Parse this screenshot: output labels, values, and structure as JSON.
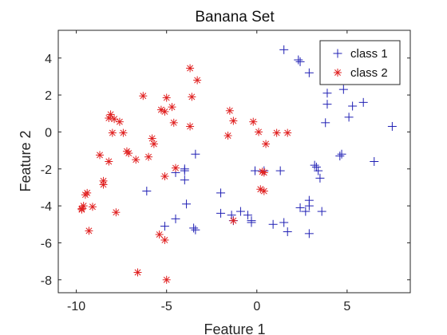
{
  "chart_data": {
    "type": "scatter",
    "title": "Banana Set",
    "xlabel": "Feature 1",
    "ylabel": "Feature 2",
    "xlim": [
      -11,
      8.5
    ],
    "ylim": [
      -8.7,
      5.5
    ],
    "xticks": [
      -10,
      -5,
      0,
      5
    ],
    "yticks": [
      -8,
      -6,
      -4,
      -2,
      0,
      2,
      4
    ],
    "grid": false,
    "legend_position": "top-right",
    "series": [
      {
        "name": "class 1",
        "marker": "plus",
        "color": "#1f1fb4",
        "x": [
          1.5,
          2.3,
          2.4,
          2.9,
          4.8,
          3.9,
          3.9,
          3.8,
          5.3,
          5.9,
          5.1,
          7.5,
          4.7,
          4.6,
          6.5,
          3.2,
          3.3,
          3.5,
          1.3,
          0.4,
          -3.4,
          -4.0,
          -4.0,
          -4.0,
          -4.5,
          -6.1,
          -2.0,
          -3.9,
          -4.5,
          -5.1,
          -3.5,
          -3.4,
          -2.0,
          -1.4,
          -1.3,
          -0.9,
          -0.5,
          -0.3,
          -0.3,
          0.9,
          1.5,
          1.7,
          2.4,
          2.7,
          2.9,
          2.9,
          3.6,
          3.4,
          2.9,
          -0.1
        ],
        "y": [
          4.45,
          3.9,
          3.8,
          3.2,
          2.3,
          2.1,
          1.5,
          0.5,
          1.4,
          1.6,
          0.8,
          0.3,
          -1.2,
          -1.3,
          -1.6,
          -1.8,
          -1.9,
          -2.5,
          -2.1,
          -2.1,
          -1.2,
          -2.0,
          -2.1,
          -2.6,
          -2.2,
          -3.2,
          -3.3,
          -3.9,
          -4.7,
          -5.1,
          -5.2,
          -5.3,
          -4.4,
          -4.5,
          -4.8,
          -4.3,
          -4.5,
          -4.8,
          -4.9,
          -5.0,
          -4.9,
          -5.4,
          -4.1,
          -4.3,
          -4.0,
          -3.7,
          -4.3,
          -2.1,
          -5.5,
          -2.1
        ]
      },
      {
        "name": "class 2",
        "marker": "asterisk",
        "color": "#e02020",
        "x": [
          -3.7,
          -3.3,
          -3.6,
          -5.0,
          -5.3,
          -6.3,
          -5.1,
          -4.7,
          -4.6,
          -3.7,
          -8.1,
          -8.2,
          -7.9,
          -7.6,
          -7.4,
          -8.0,
          -7.2,
          -7.1,
          -5.8,
          -5.7,
          -6.0,
          -4.5,
          -5.1,
          -8.7,
          -8.5,
          -8.5,
          -9.4,
          -9.5,
          -9.6,
          -9.7,
          -9.7,
          -9.1,
          -9.3,
          -7.8,
          -8.2,
          -6.7,
          -5.4,
          -5.1,
          -6.6,
          -5.0,
          -1.5,
          -1.3,
          -1.6,
          -0.2,
          0.1,
          0.5,
          1.1,
          1.7,
          0.3,
          0.2,
          0.4,
          0.4,
          -1.3
        ],
        "y": [
          3.45,
          2.8,
          1.9,
          1.85,
          1.2,
          1.95,
          1.1,
          1.35,
          0.5,
          0.3,
          0.95,
          0.75,
          0.7,
          0.55,
          -0.05,
          -0.05,
          -1.05,
          -1.15,
          -0.35,
          -0.65,
          -1.35,
          -1.95,
          -2.4,
          -1.25,
          -2.65,
          -2.85,
          -3.3,
          -3.4,
          -4.0,
          -4.2,
          -4.15,
          -4.05,
          -5.35,
          -4.35,
          -1.6,
          -1.5,
          -5.55,
          -5.85,
          -7.6,
          -8.0,
          1.15,
          0.6,
          -0.2,
          0.55,
          0.0,
          -0.65,
          -0.05,
          -0.05,
          -2.15,
          -3.1,
          -3.2,
          -2.2,
          -4.8
        ]
      }
    ]
  }
}
